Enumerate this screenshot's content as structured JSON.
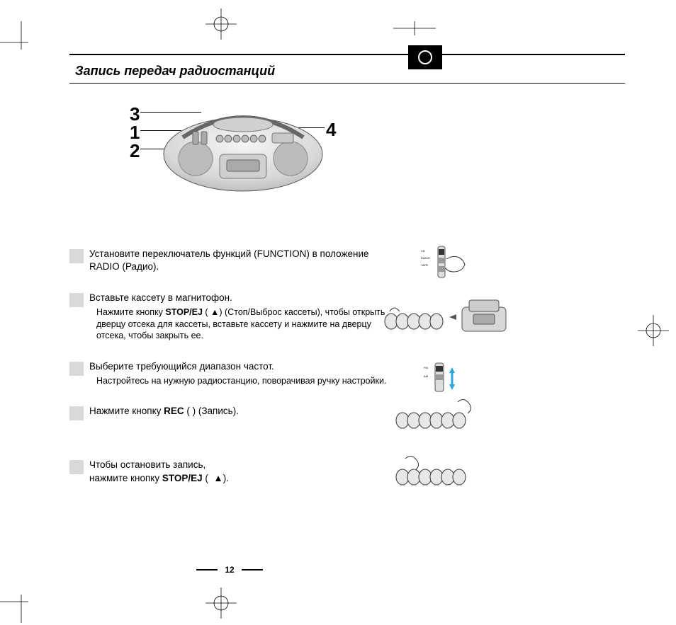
{
  "title": "Запись передач радиостанций",
  "callouts": {
    "c1": "1",
    "c2": "2",
    "c3": "3",
    "c4": "4"
  },
  "steps": [
    {
      "main_html": "Установите переключатель функций (FUNCTION) в положение RADIO (Радио)."
    },
    {
      "main_html": "Вставьте кассету в магнитофон.",
      "sub_html": "Нажмите кнопку <b>STOP/EJ</b> (&nbsp;&#9650;) (Стоп/Выброс кассеты), чтобы открыть дверцу отсека для кассеты, вставьте кассету и нажмите на дверцу отсека, чтобы закрыть ее."
    },
    {
      "main_html": "Выберите требующийся диапазон частот.",
      "sub_html": "Настройтесь на нужную радиостанцию, поворачивая ручку настройки."
    },
    {
      "main_html": "Нажмите кнопку <b>REC</b> (&nbsp;) (Запись)."
    },
    {
      "main_html": "Чтобы остановить запись,<br>нажмите кнопку <b>STOP/EJ</b> (&nbsp;&nbsp;&#9650;)."
    }
  ],
  "page_number": "12",
  "colors": {
    "bg": "#ffffff",
    "text": "#000000",
    "step_box": "#d9d9d9",
    "device_light": "#e8e8e8",
    "device_mid": "#cfcfcf",
    "device_dark": "#9a9a9a"
  }
}
